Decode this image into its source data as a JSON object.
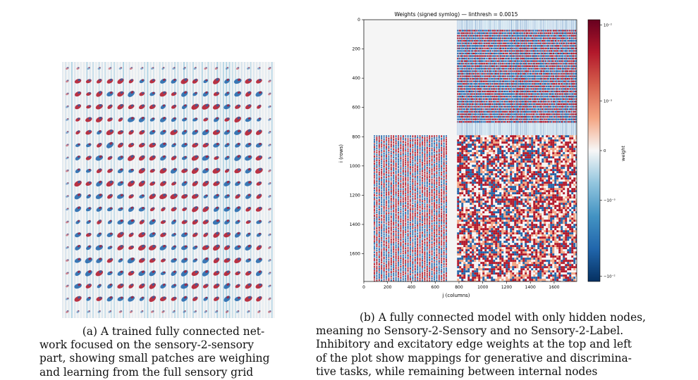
{
  "figure_a": {
    "caption_lines": [
      "(a) A trained fully connected net-",
      "work focused on the sensory-2-sensory",
      "part, showing small patches are weighing",
      "and learning from the full sensory grid"
    ]
  },
  "figure_b": {
    "caption_lines": [
      "(b) A fully connected model with only hidden nodes,",
      "meaning no Sensory-2-Sensory and no Sensory-2-Label.",
      "Inhibitory and excitatory edge weights at the top and left",
      "of the plot show mappings for generative and discrimina-",
      "tive tasks, while remaining between internal nodes"
    ]
  },
  "chart_data": {
    "type": "heatmap",
    "title": "Weights (signed symlog) — linthresh = 0.0015",
    "xlabel": "j (columns)",
    "ylabel": "i (rows)",
    "xlim": [
      0,
      1790
    ],
    "ylim": [
      1790,
      0
    ],
    "xticks": [
      0,
      200,
      400,
      600,
      800,
      1000,
      1200,
      1400,
      1600
    ],
    "yticks": [
      0,
      200,
      400,
      600,
      800,
      1000,
      1200,
      1400,
      1600
    ],
    "colorbar": {
      "label": "weight",
      "scale": "symlog",
      "linthresh": 0.0015,
      "ticks": [
        "10⁻²",
        "10⁻³",
        "0",
        "−10⁻³",
        "−10⁻²"
      ],
      "colors": [
        "#67001f",
        "#b2182b",
        "#d6604d",
        "#f4a582",
        "#f7f7f7",
        "#92c5de",
        "#4393c3",
        "#2166ac",
        "#053061"
      ]
    },
    "regions": [
      {
        "name": "top-right",
        "rows": [
          0,
          790
        ],
        "cols": [
          784,
          1790
        ],
        "pattern": "horizontal stripes"
      },
      {
        "name": "bottom-left",
        "rows": [
          790,
          1790
        ],
        "cols": [
          84,
          700
        ],
        "pattern": "vertical stripes"
      },
      {
        "name": "bottom-right",
        "rows": [
          790,
          1790
        ],
        "cols": [
          784,
          1790
        ],
        "pattern": "dense noise"
      },
      {
        "name": "top-left",
        "rows": [
          0,
          790
        ],
        "cols": [
          0,
          784
        ],
        "pattern": "zero"
      }
    ]
  }
}
